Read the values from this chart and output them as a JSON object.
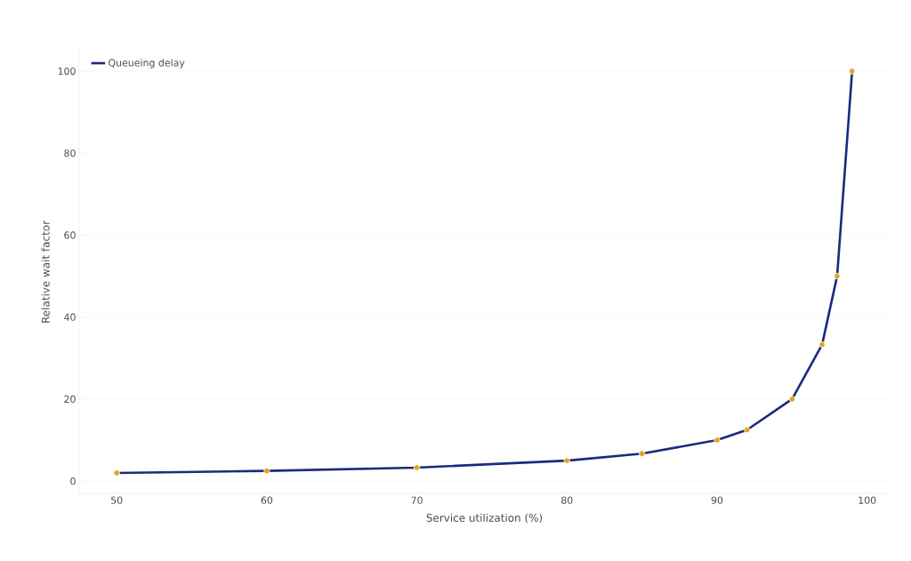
{
  "chart_data": {
    "type": "line",
    "xlabel": "Service utilization (%)",
    "ylabel": "Relative wait factor",
    "x": [
      50,
      60,
      70,
      80,
      85,
      90,
      92,
      95,
      97,
      98,
      99
    ],
    "series": [
      {
        "name": "Queueing delay",
        "color": "#1c2a7d",
        "values": [
          2,
          2.5,
          3.3,
          5,
          6.7,
          10,
          12.5,
          20,
          33.3,
          50,
          100
        ]
      }
    ],
    "xlim": [
      47.5,
      101.5
    ],
    "ylim": [
      -3,
      105
    ],
    "xticks": [
      50,
      60,
      70,
      80,
      90,
      100
    ],
    "yticks": [
      0,
      20,
      40,
      60,
      80,
      100
    ],
    "grid": "y",
    "legend": "top left",
    "marker": "circle",
    "line_style": "solid"
  }
}
